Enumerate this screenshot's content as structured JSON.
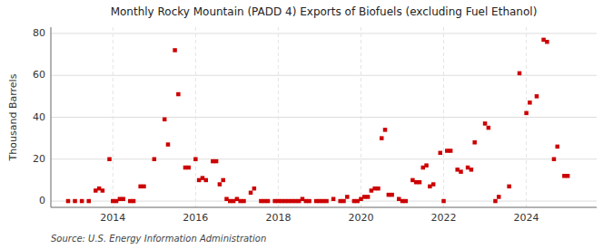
{
  "chart_data": {
    "type": "scatter",
    "title": "Monthly Rocky Mountain (PADD 4) Exports of Biofuels (excluding Fuel Ethanol)",
    "y_label": "Thousand Barrels",
    "annotations": [
      "Source: U.S. Energy Information Administration"
    ],
    "color": "#cc0000",
    "marker": "square",
    "grid": true,
    "xlim": [
      2012.5,
      2025.7
    ],
    "ylim": [
      -3,
      83
    ],
    "xticks": [
      2014,
      2016,
      2018,
      2020,
      2022,
      2024
    ],
    "yticks": [
      0,
      20,
      40,
      60,
      80
    ],
    "x": [
      2012.917,
      2013.083,
      2013.25,
      2013.417,
      2013.583,
      2013.667,
      2013.75,
      2013.917,
      2014.0,
      2014.083,
      2014.167,
      2014.25,
      2014.417,
      2014.5,
      2014.667,
      2014.75,
      2015.0,
      2015.25,
      2015.333,
      2015.5,
      2015.583,
      2015.75,
      2015.833,
      2016.0,
      2016.083,
      2016.167,
      2016.25,
      2016.417,
      2016.5,
      2016.583,
      2016.667,
      2016.75,
      2016.833,
      2016.917,
      2017.0,
      2017.083,
      2017.167,
      2017.333,
      2017.417,
      2017.583,
      2017.667,
      2017.75,
      2017.917,
      2018.0,
      2018.083,
      2018.167,
      2018.25,
      2018.333,
      2018.417,
      2018.5,
      2018.583,
      2018.667,
      2018.75,
      2018.917,
      2019.0,
      2019.083,
      2019.167,
      2019.333,
      2019.5,
      2019.583,
      2019.667,
      2019.833,
      2019.917,
      2020.0,
      2020.083,
      2020.167,
      2020.25,
      2020.333,
      2020.417,
      2020.5,
      2020.583,
      2020.667,
      2020.75,
      2020.917,
      2021.0,
      2021.083,
      2021.25,
      2021.333,
      2021.417,
      2021.5,
      2021.583,
      2021.667,
      2021.75,
      2021.917,
      2022.0,
      2022.083,
      2022.167,
      2022.333,
      2022.417,
      2022.583,
      2022.667,
      2022.75,
      2023.0,
      2023.083,
      2023.25,
      2023.333,
      2023.583,
      2023.833,
      2024.0,
      2024.083,
      2024.25,
      2024.417,
      2024.5,
      2024.667,
      2024.75,
      2024.917,
      2025.0
    ],
    "values": [
      0,
      0,
      0,
      0,
      5,
      6,
      5,
      20,
      0,
      0,
      1,
      1,
      0,
      0,
      7,
      7,
      20,
      39,
      27,
      72,
      51,
      16,
      16,
      20,
      10,
      11,
      10,
      19,
      19,
      8,
      10,
      1,
      0,
      0,
      1,
      0,
      0,
      4,
      6,
      0,
      0,
      0,
      0,
      0,
      0,
      0,
      0,
      0,
      0,
      0,
      1,
      0,
      0,
      0,
      0,
      0,
      0,
      1,
      0,
      0,
      2,
      0,
      0,
      1,
      2,
      2,
      5,
      6,
      6,
      30,
      34,
      3,
      3,
      1,
      0,
      0,
      10,
      9,
      9,
      16,
      17,
      7,
      8,
      23,
      0,
      24,
      24,
      15,
      14,
      16,
      15,
      28,
      37,
      35,
      0,
      2,
      7,
      61,
      42,
      47,
      50,
      77,
      76,
      20,
      26,
      12,
      12
    ]
  }
}
